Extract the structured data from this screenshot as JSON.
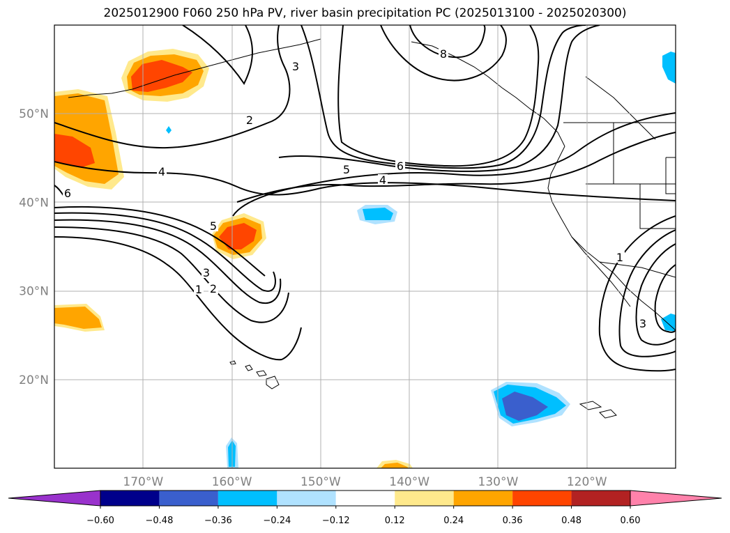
{
  "title": "2025012900 F060 250 hPa PV, river basin precipitation PC (2025013100 - 2025020300)",
  "chart_data": {
    "type": "map-contour",
    "title": "2025012900 F060 250 hPa PV, river basin precipitation PC (2025013100 - 2025020300)",
    "lon_ticks": [
      "170°W",
      "160°W",
      "150°W",
      "140°W",
      "130°W",
      "120°W"
    ],
    "lat_ticks": [
      "50°N",
      "40°N",
      "30°N",
      "20°N"
    ],
    "lon_range": [
      -180,
      -110
    ],
    "lat_range": [
      10,
      60
    ],
    "contour_labels": [
      "8",
      "3",
      "2",
      "4",
      "5",
      "6",
      "4",
      "5",
      "3",
      "2",
      "1",
      "6",
      "1",
      "3"
    ],
    "colorbar": {
      "boundaries": [
        "−0.60",
        "−0.48",
        "−0.36",
        "−0.24",
        "−0.12",
        "0.12",
        "0.24",
        "0.36",
        "0.48",
        "0.60"
      ],
      "colors": [
        "#9932cc",
        "#00008b",
        "#3a5fcd",
        "#00bfff",
        "#b0e2ff",
        "#ffffff",
        "#ffe98c",
        "#ffa500",
        "#ff4500",
        "#b22222",
        "#ff82ab"
      ],
      "extend": "both"
    },
    "grid": true
  }
}
